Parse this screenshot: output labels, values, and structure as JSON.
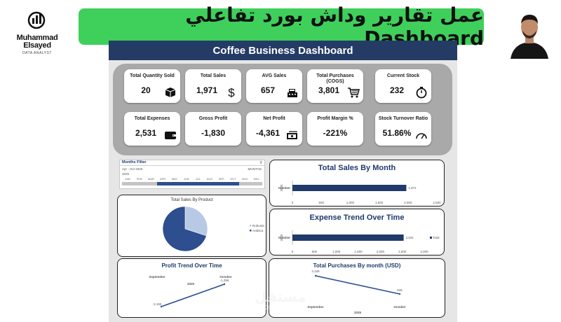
{
  "brand": {
    "name_line1": "Muhammad",
    "name_line2": "Elsayed",
    "subtitle": "DATA ANALYST"
  },
  "banner": {
    "text": "عمل تقارير وداش بورد تفاعلي Dashboard"
  },
  "dashboard": {
    "title": "Coffee Business Dashboard"
  },
  "kpis": [
    {
      "label": "Total Quantity Sold",
      "value": "20",
      "icon": "box-icon"
    },
    {
      "label": "Total Sales",
      "value": "1,971",
      "icon": "dollar-icon"
    },
    {
      "label": "AVG Sales",
      "value": "657",
      "icon": "cash-register-icon"
    },
    {
      "label": "Total Purchases (COGS)",
      "value": "3,801",
      "icon": "cart-icon"
    },
    {
      "label": "Current Stock",
      "value": "232",
      "icon": "stopwatch-icon"
    },
    {
      "label": "Total Expenses",
      "value": "2,531",
      "icon": "wallet-icon"
    },
    {
      "label": "Gross Profit",
      "value": "-1,830",
      "icon": ""
    },
    {
      "label": "Net Profit",
      "value": "-4,361",
      "icon": "money-icon"
    },
    {
      "label": "Profit Margin %",
      "value": "-221%",
      "icon": ""
    },
    {
      "label": "Stock Turnover Ratio",
      "value": "51.86%",
      "icon": "gauge-icon"
    }
  ],
  "months_filter": {
    "title": "Months Filter",
    "range": "Apr - Oct 2025",
    "unit": "MONTHS",
    "year": "2025",
    "months": [
      "JAN",
      "FEB",
      "MAR",
      "APR",
      "MAY",
      "JUN",
      "JUL",
      "AUG",
      "SEP",
      "OCT",
      "NOV",
      "DEC"
    ],
    "selected_start": 3,
    "selected_end": 9
  },
  "sales_by_product": {
    "title": "Total Sales By Product",
    "legend": [
      "Robusta",
      "Arabica"
    ],
    "colors": [
      "#b8c9e6",
      "#2d4e8f"
    ],
    "chart_data": {
      "type": "pie",
      "categories": [
        "Robusta",
        "Arabica"
      ],
      "values": [
        30,
        70
      ]
    }
  },
  "total_sales_by_month": {
    "title": "Total Sales By Month",
    "chart_data": {
      "type": "bar",
      "categories": [
        "October"
      ],
      "values": [
        1971
      ],
      "data_labels": [
        "1,971"
      ],
      "xlim": [
        0,
        2500
      ],
      "x_ticks": [
        "0",
        "500",
        "1,000",
        "1,500",
        "2,000",
        "2,500"
      ],
      "group_label": "2025"
    }
  },
  "expense_trend": {
    "title": "Expense Trend Over Time",
    "chart_data": {
      "type": "bar",
      "categories": [
        "October"
      ],
      "values": [
        2531
      ],
      "data_labels": [
        "2,531"
      ],
      "xlim": [
        0,
        3000
      ],
      "x_ticks": [
        "0",
        "500",
        "1,000",
        "1,500",
        "2,000",
        "2,500",
        "3,000"
      ],
      "legend": [
        "Total"
      ],
      "group_label": "2025"
    }
  },
  "profit_trend": {
    "title": "Profit Trend Over Time",
    "chart_data": {
      "type": "line",
      "categories": [
        "September",
        "October"
      ],
      "values": [
        -3155,
        -1296
      ],
      "data_labels": [
        "-3,155",
        "-1,296"
      ],
      "group_label": "2025"
    }
  },
  "purchases_by_month": {
    "title": "Total Purchases By month (USD)",
    "chart_data": {
      "type": "line",
      "categories": [
        "September",
        "October"
      ],
      "values": [
        3155,
        646
      ],
      "data_labels": [
        "3,155",
        "646"
      ],
      "group_label": "2025"
    }
  },
  "watermark": {
    "arabic": "مستقل",
    "url": "mostaql.com"
  }
}
